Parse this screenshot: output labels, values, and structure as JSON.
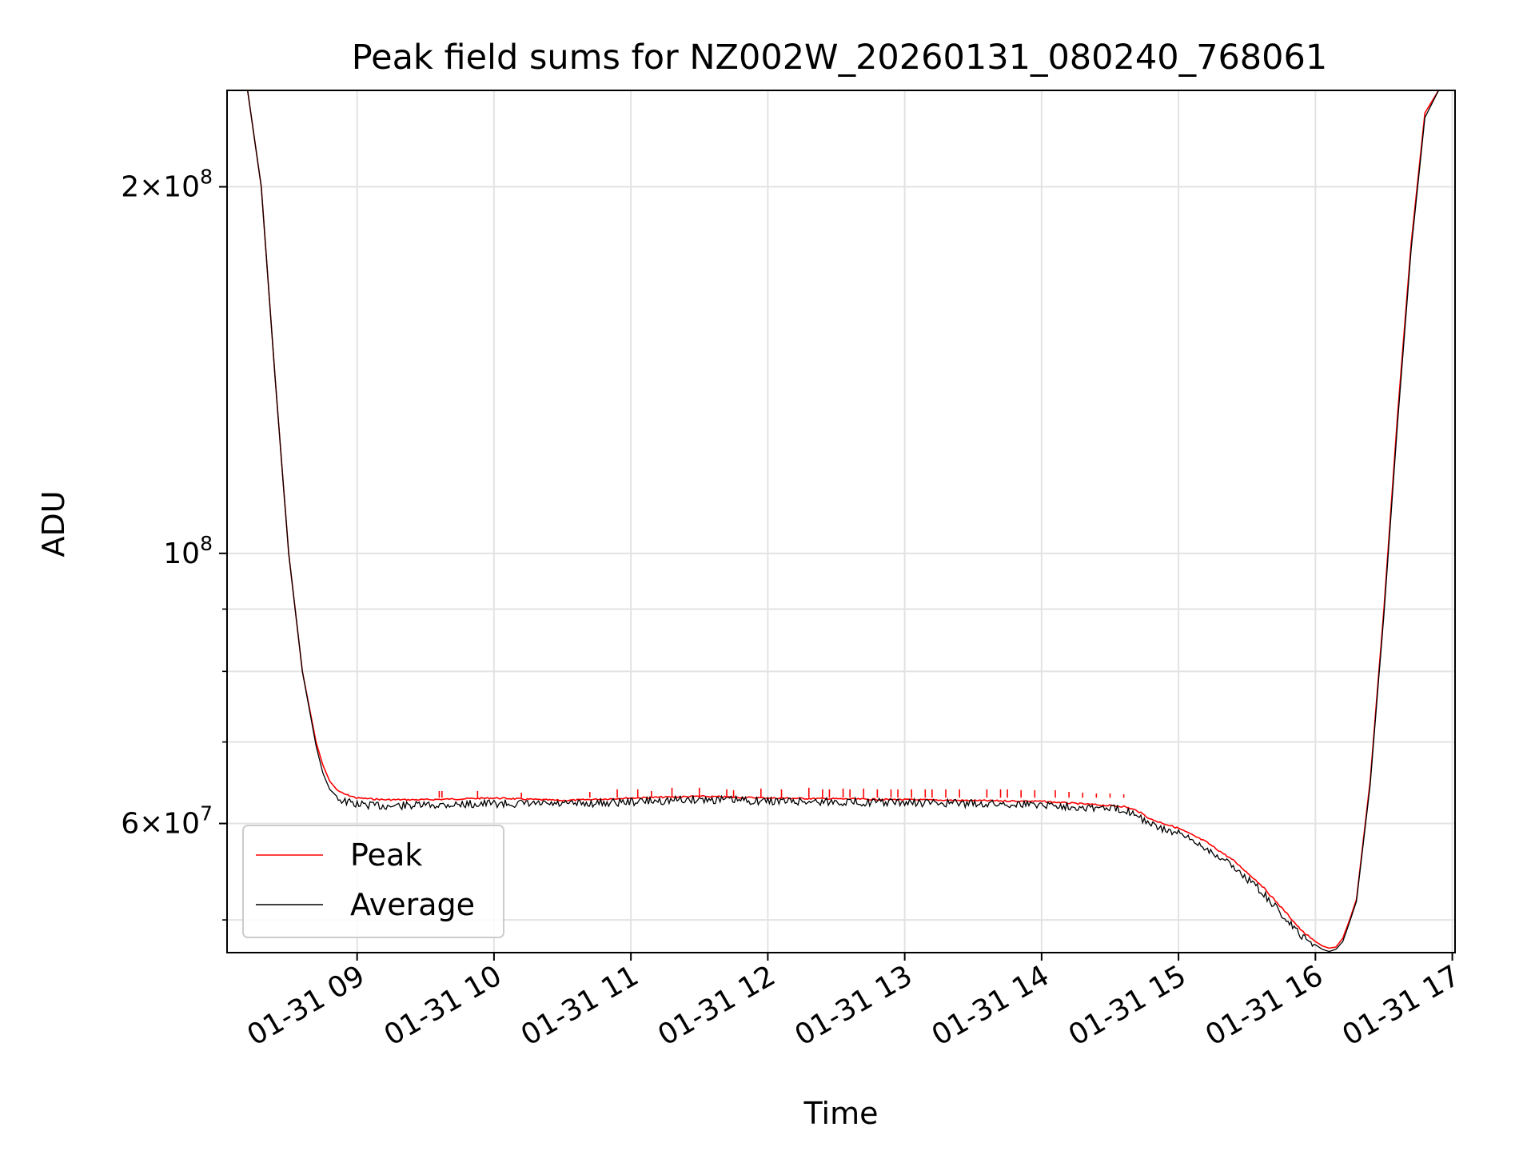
{
  "chart_data": {
    "type": "line",
    "title": "Peak field sums for NZ002W_20260131_080240_768061",
    "xlabel": "Time",
    "ylabel": "ADU",
    "yscale": "log",
    "xlim_hours": [
      8.05,
      17.02
    ],
    "ylim": [
      47000000,
      240000000
    ],
    "x_ticks": [
      {
        "value": 9,
        "label": "01-31 09"
      },
      {
        "value": 10,
        "label": "01-31 10"
      },
      {
        "value": 11,
        "label": "01-31 11"
      },
      {
        "value": 12,
        "label": "01-31 12"
      },
      {
        "value": 13,
        "label": "01-31 13"
      },
      {
        "value": 14,
        "label": "01-31 14"
      },
      {
        "value": 15,
        "label": "01-31 15"
      },
      {
        "value": 16,
        "label": "01-31 16"
      },
      {
        "value": 17,
        "label": "01-31 17"
      }
    ],
    "y_major_ticks": [
      {
        "value": 200000000,
        "mantissa": "2",
        "times": "×",
        "base": "10",
        "exp": "8"
      },
      {
        "value": 100000000,
        "mantissa": "",
        "times": "",
        "base": "10",
        "exp": "8"
      },
      {
        "value": 60000000,
        "mantissa": "6",
        "times": "×",
        "base": "10",
        "exp": "7"
      }
    ],
    "y_minor_ticks": [
      50000000,
      70000000,
      80000000,
      90000000
    ],
    "grid": true,
    "legend_position": "lower-left",
    "series": [
      {
        "name": "Peak",
        "color": "#ff0000",
        "x_hours": [
          8.05,
          8.2,
          8.3,
          8.4,
          8.5,
          8.6,
          8.7,
          8.75,
          8.8,
          8.85,
          8.9,
          9.0,
          9.2,
          9.5,
          10.0,
          10.5,
          11.0,
          11.5,
          12.0,
          12.5,
          13.0,
          13.5,
          14.0,
          14.3,
          14.6,
          14.7,
          14.75,
          14.8,
          15.0,
          15.2,
          15.4,
          15.6,
          15.8,
          15.9,
          16.0,
          16.05,
          16.1,
          16.15,
          16.2,
          16.25,
          16.3,
          16.4,
          16.5,
          16.6,
          16.7,
          16.8,
          16.9,
          17.02
        ],
        "values": [
          240000000,
          240000000,
          200000000,
          140000000,
          100000000,
          80000000,
          70000000,
          67000000,
          65000000,
          64000000,
          63500000,
          63000000,
          62800000,
          62800000,
          63000000,
          62700000,
          63000000,
          63200000,
          63000000,
          62900000,
          62800000,
          62700000,
          62600000,
          62300000,
          62000000,
          61500000,
          61000000,
          60500000,
          59500000,
          58000000,
          56000000,
          53500000,
          50500000,
          49000000,
          48000000,
          47600000,
          47400000,
          47500000,
          48300000,
          50000000,
          52000000,
          65000000,
          90000000,
          130000000,
          180000000,
          230000000,
          240000000,
          240000000
        ],
        "spikes_hours": [
          9.6,
          9.62,
          9.88,
          10.2,
          10.7,
          10.9,
          11.05,
          11.15,
          11.3,
          11.5,
          11.7,
          11.75,
          11.95,
          12.1,
          12.3,
          12.4,
          12.45,
          12.55,
          12.6,
          12.7,
          12.8,
          12.9,
          12.95,
          13.05,
          13.15,
          13.2,
          13.3,
          13.4,
          13.6,
          13.7,
          13.75,
          13.85,
          13.95,
          14.1,
          14.2,
          14.3,
          14.4,
          14.5,
          14.6
        ],
        "spike_values": [
          63800000,
          63800000,
          63800000,
          63600000,
          63700000,
          64000000,
          64000000,
          63800000,
          64200000,
          64200000,
          64000000,
          63900000,
          64100000,
          64000000,
          64200000,
          64000000,
          64000000,
          64100000,
          64000000,
          64100000,
          64000000,
          64000000,
          64000000,
          64000000,
          64000000,
          64000000,
          64000000,
          64000000,
          64000000,
          64000000,
          64000000,
          63900000,
          63900000,
          63900000,
          63700000,
          63600000,
          63500000,
          63500000,
          63400000
        ]
      },
      {
        "name": "Average",
        "color": "#000000",
        "x_hours": [
          8.05,
          8.2,
          8.3,
          8.4,
          8.5,
          8.6,
          8.7,
          8.75,
          8.8,
          8.85,
          8.9,
          9.0,
          9.2,
          9.5,
          10.0,
          10.5,
          11.0,
          11.5,
          12.0,
          12.5,
          13.0,
          13.5,
          14.0,
          14.3,
          14.6,
          14.7,
          14.75,
          14.8,
          15.0,
          15.2,
          15.4,
          15.6,
          15.8,
          15.9,
          16.0,
          16.05,
          16.1,
          16.15,
          16.2,
          16.25,
          16.3,
          16.4,
          16.5,
          16.6,
          16.7,
          16.8,
          16.9,
          17.02
        ],
        "values": [
          240000000,
          240000000,
          200000000,
          140000000,
          100000000,
          80000000,
          69500000,
          66000000,
          64000000,
          63200000,
          62800000,
          62400000,
          62200000,
          62300000,
          62500000,
          62400000,
          62700000,
          63000000,
          62800000,
          62700000,
          62600000,
          62500000,
          62400000,
          62100000,
          61800000,
          61300000,
          60500000,
          60000000,
          59000000,
          57500000,
          55500000,
          53000000,
          50000000,
          48600000,
          47700000,
          47300000,
          47100000,
          47300000,
          48000000,
          49800000,
          51800000,
          64500000,
          89000000,
          128000000,
          178000000,
          228000000,
          240000000,
          240000000
        ]
      }
    ]
  }
}
